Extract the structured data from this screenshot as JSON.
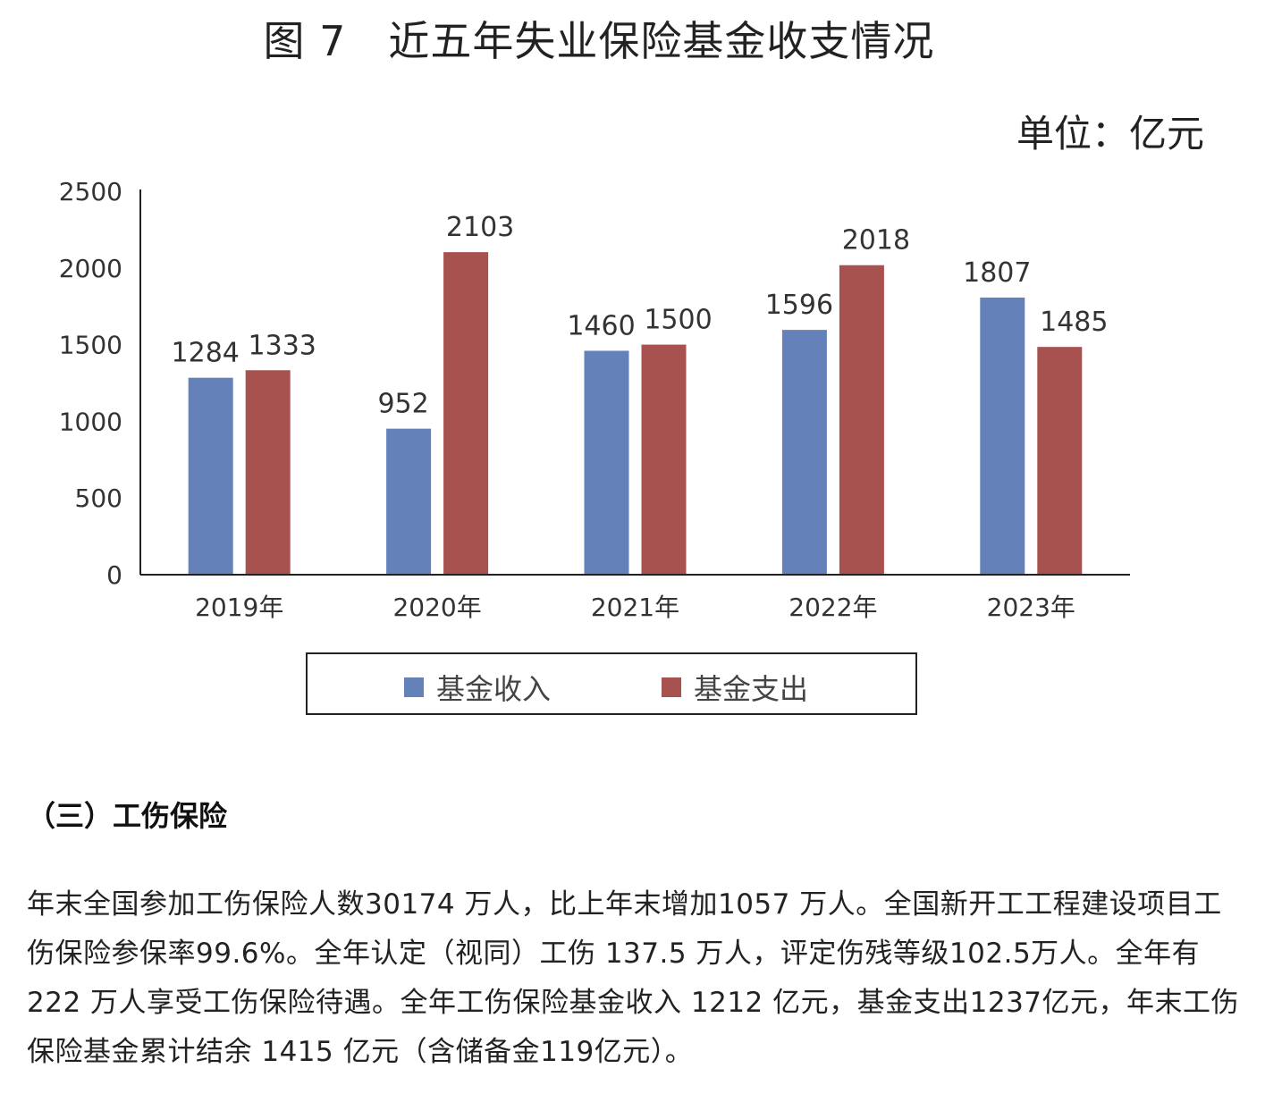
{
  "figure": {
    "title": "图 7　近五年失业保险基金收支情况",
    "unit": "单位：亿元"
  },
  "chart_data": {
    "type": "bar",
    "title": "图 7　近五年失业保险基金收支情况",
    "unit": "单位：亿元",
    "categories": [
      "2019年",
      "2020年",
      "2021年",
      "2022年",
      "2023年"
    ],
    "series": [
      {
        "name": "基金收入",
        "color": "#6482b9",
        "values": [
          1284,
          952,
          1460,
          1596,
          1807
        ]
      },
      {
        "name": "基金支出",
        "color": "#a7524f",
        "values": [
          1333,
          2103,
          1500,
          2018,
          1485
        ]
      }
    ],
    "ylim": [
      0,
      2500
    ],
    "yticks": [
      0,
      500,
      1000,
      1500,
      2000,
      2500
    ],
    "grid": false,
    "legend_position": "bottom"
  },
  "section": {
    "heading": "（三）工伤保险",
    "paragraph": "年末全国参加工伤保险人数30174 万人，比上年末增加1057 万人。全国新开工工程建设项目工伤保险参保率99.6%。全年认定（视同）工伤 137.5 万人，评定伤残等级102.5万人。全年有 222 万人享受工伤保险待遇。全年工伤保险基金收入 1212 亿元，基金支出1237亿元，年末工伤保险基金累计结余 1415 亿元（含储备金119亿元）。"
  }
}
